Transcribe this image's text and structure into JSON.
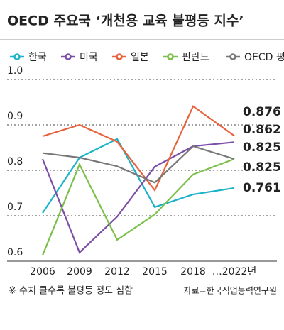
{
  "chart_data": {
    "type": "line",
    "title": "OECD 주요국 ‘개천용 교육 불평등 지수’",
    "categories": [
      "2006",
      "2009",
      "2012",
      "2015",
      "2018",
      "…2022년"
    ],
    "series": [
      {
        "name": "한국",
        "color": "#1ab3c8",
        "values": [
          0.706,
          0.828,
          0.869,
          0.719,
          0.747,
          0.761
        ]
      },
      {
        "name": "미국",
        "color": "#7b4fa8",
        "values": [
          0.825,
          0.619,
          0.698,
          0.808,
          0.853,
          0.862
        ]
      },
      {
        "name": "일본",
        "color": "#e8613a",
        "values": [
          0.875,
          0.9,
          0.863,
          0.756,
          0.941,
          0.876
        ]
      },
      {
        "name": "핀란드",
        "color": "#7cc04b",
        "values": [
          0.613,
          0.813,
          0.647,
          0.703,
          0.791,
          0.825
        ]
      },
      {
        "name": "OECD 평균",
        "color": "#777777",
        "values": [
          0.838,
          0.828,
          0.809,
          0.773,
          0.853,
          0.825
        ]
      }
    ],
    "ylim": [
      0.6,
      1.0
    ],
    "yticks": [
      0.6,
      0.7,
      0.8,
      0.9,
      {
        "value": 1,
        "label": "1.0"
      }
    ],
    "grid": true,
    "note": "※ 수치 클수록 불평등 정도 심함",
    "source": "자료=한국직업능력연구원"
  }
}
